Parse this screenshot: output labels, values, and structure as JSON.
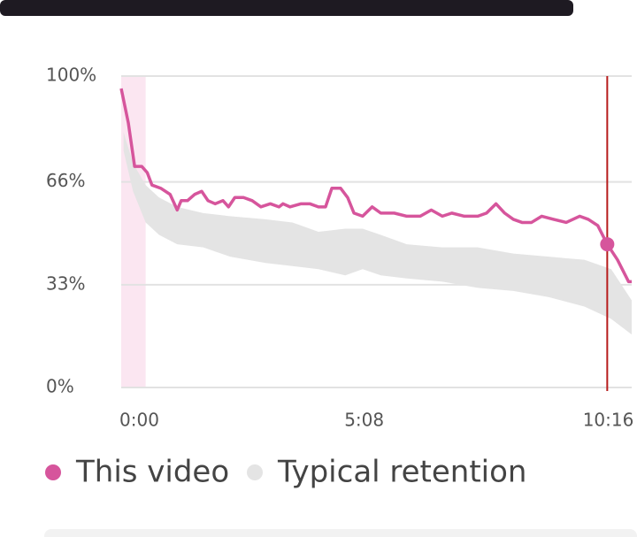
{
  "chart_data": {
    "type": "line",
    "xlim": [
      0,
      647
    ],
    "xticks": [
      {
        "value": 0,
        "label": "0:00"
      },
      {
        "value": 308,
        "label": "5:08"
      },
      {
        "value": 616,
        "label": "10:16"
      }
    ],
    "ylim": [
      0,
      100
    ],
    "yticks": [
      {
        "value": 0,
        "label": "0%"
      },
      {
        "value": 33,
        "label": "33%"
      },
      {
        "value": 66,
        "label": "66%"
      },
      {
        "value": 100,
        "label": "100%"
      }
    ],
    "grid": true,
    "highlight_range": [
      0,
      31
    ],
    "current": {
      "x": 616,
      "value": 46,
      "color": "#b71c1c"
    },
    "series": [
      {
        "name": "This video",
        "color": "#d6559c",
        "x": [
          0,
          9,
          17,
          26,
          33,
          39,
          50,
          62,
          71,
          76,
          84,
          93,
          102,
          110,
          119,
          129,
          136,
          144,
          155,
          166,
          177,
          189,
          200,
          205,
          214,
          228,
          239,
          250,
          259,
          267,
          278,
          287,
          295,
          306,
          318,
          329,
          346,
          362,
          379,
          393,
          407,
          419,
          435,
          452,
          463,
          475,
          486,
          497,
          508,
          520,
          533,
          548,
          564,
          581,
          592,
          604,
          616,
          629,
          643,
          647
        ],
        "values": [
          96,
          85,
          71,
          71,
          69,
          65,
          64,
          62,
          57,
          60,
          60,
          62,
          63,
          60,
          59,
          60,
          58,
          61,
          61,
          60,
          58,
          59,
          58,
          59,
          58,
          59,
          59,
          58,
          58,
          64,
          64,
          61,
          56,
          55,
          58,
          56,
          56,
          55,
          55,
          57,
          55,
          56,
          55,
          55,
          56,
          59,
          56,
          54,
          53,
          53,
          55,
          54,
          53,
          55,
          54,
          52,
          46,
          41,
          34,
          34
        ]
      },
      {
        "name": "Typical retention",
        "color": "#e4e4e4",
        "band": true,
        "x": [
          3,
          15,
          31,
          48,
          71,
          104,
          138,
          183,
          217,
          250,
          284,
          306,
          329,
          362,
          407,
          452,
          497,
          542,
          587,
          621,
          647
        ],
        "values": [
          82,
          72,
          65,
          61,
          58,
          56,
          55,
          54,
          53,
          50,
          51,
          51,
          49,
          46,
          45,
          45,
          43,
          42,
          41,
          38,
          28
        ],
        "lower": [
          76,
          63,
          53,
          49,
          46,
          45,
          42,
          40,
          39,
          38,
          36,
          38,
          36,
          35,
          34,
          32,
          31,
          29,
          26,
          22,
          17
        ]
      }
    ]
  }
}
